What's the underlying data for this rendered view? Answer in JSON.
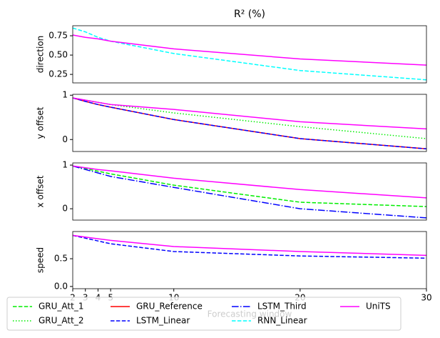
{
  "title": "R² (%)",
  "legend": {
    "loc": "lower center",
    "columns": 4,
    "items": [
      {
        "name": "GRU_Att_1",
        "color": "#00ee00",
        "dash": "dashed"
      },
      {
        "name": "GRU_Att_2",
        "color": "#00ee00",
        "dash": "dotted"
      },
      {
        "name": "GRU_Reference",
        "color": "#ff0000",
        "dash": "solid"
      },
      {
        "name": "LSTM_Linear",
        "color": "#0000ff",
        "dash": "dashed"
      },
      {
        "name": "LSTM_Third",
        "color": "#0000ff",
        "dash": "dashdot"
      },
      {
        "name": "RNN_Linear",
        "color": "#00ffff",
        "dash": "dashed"
      },
      {
        "name": "UniTS",
        "color": "#ff00ff",
        "dash": "solid"
      }
    ]
  },
  "chart_data": [
    {
      "type": "line",
      "ylabel": "direction",
      "x": [
        2,
        3,
        4,
        5,
        10,
        20,
        30
      ],
      "xlim": [
        2,
        30
      ],
      "ylim": [
        0.14,
        0.88
      ],
      "yticks": [
        0.25,
        {
          "value": 0.5,
          "label": "0.50"
        },
        0.75
      ],
      "series": [
        {
          "name": "RNN_Linear",
          "color": "#00ffff",
          "dash": "dashed",
          "values": [
            0.85,
            0.8,
            0.73,
            0.68,
            0.52,
            0.3,
            0.18
          ]
        },
        {
          "name": "UniTS",
          "color": "#ff00ff",
          "dash": "solid",
          "values": [
            0.76,
            0.73,
            0.71,
            0.68,
            0.58,
            0.45,
            0.37
          ]
        }
      ]
    },
    {
      "type": "line",
      "ylabel": "y offset",
      "x": [
        2,
        3,
        4,
        5,
        10,
        20,
        30
      ],
      "xlim": [
        2,
        30
      ],
      "ylim": [
        -0.27,
        1.02
      ],
      "yticks": [
        0,
        1
      ],
      "series": [
        {
          "name": "GRU_Att_2",
          "color": "#00ee00",
          "dash": "dotted",
          "values": [
            0.94,
            0.89,
            0.84,
            0.79,
            0.6,
            0.29,
            0.02
          ]
        },
        {
          "name": "GRU_Reference",
          "color": "#ff0000",
          "dash": "solid",
          "values": [
            0.94,
            0.86,
            0.79,
            0.73,
            0.45,
            0.02,
            -0.21
          ]
        },
        {
          "name": "LSTM_Linear",
          "color": "#0000ff",
          "dash": "dashed",
          "values": [
            0.94,
            0.86,
            0.79,
            0.73,
            0.45,
            0.02,
            -0.21
          ]
        },
        {
          "name": "UniTS",
          "color": "#ff00ff",
          "dash": "solid",
          "values": [
            0.94,
            0.89,
            0.84,
            0.79,
            0.68,
            0.4,
            0.24
          ]
        }
      ]
    },
    {
      "type": "line",
      "ylabel": "x offset",
      "x": [
        2,
        3,
        4,
        5,
        10,
        20,
        30
      ],
      "xlim": [
        2,
        30
      ],
      "ylim": [
        -0.26,
        1.05
      ],
      "yticks": [
        0,
        1
      ],
      "series": [
        {
          "name": "GRU_Att_1",
          "color": "#00ee00",
          "dash": "dashed",
          "values": [
            0.98,
            0.92,
            0.86,
            0.8,
            0.54,
            0.15,
            0.05
          ]
        },
        {
          "name": "LSTM_Third",
          "color": "#0000ff",
          "dash": "dashdot",
          "values": [
            0.98,
            0.9,
            0.82,
            0.74,
            0.49,
            0.0,
            -0.21
          ]
        },
        {
          "name": "UniTS",
          "color": "#ff00ff",
          "dash": "solid",
          "values": [
            0.98,
            0.94,
            0.9,
            0.87,
            0.7,
            0.44,
            0.25
          ]
        }
      ]
    },
    {
      "type": "line",
      "ylabel": "speed",
      "xlabel": "Forecasting window",
      "x": [
        2,
        3,
        4,
        5,
        10,
        20,
        30
      ],
      "xlim": [
        2,
        30
      ],
      "xticks": [
        2,
        3,
        4,
        5,
        10,
        20,
        30
      ],
      "ylim": [
        -0.04,
        0.99
      ],
      "yticks": [
        {
          "value": 0,
          "label": "0.0"
        },
        {
          "value": 0.5,
          "label": "0.5"
        }
      ],
      "series": [
        {
          "name": "LSTM_Linear",
          "color": "#0000ff",
          "dash": "dashed",
          "values": [
            0.92,
            0.87,
            0.82,
            0.77,
            0.63,
            0.55,
            0.51
          ]
        },
        {
          "name": "UniTS",
          "color": "#ff00ff",
          "dash": "solid",
          "values": [
            0.92,
            0.89,
            0.86,
            0.83,
            0.72,
            0.63,
            0.56
          ]
        }
      ]
    }
  ]
}
